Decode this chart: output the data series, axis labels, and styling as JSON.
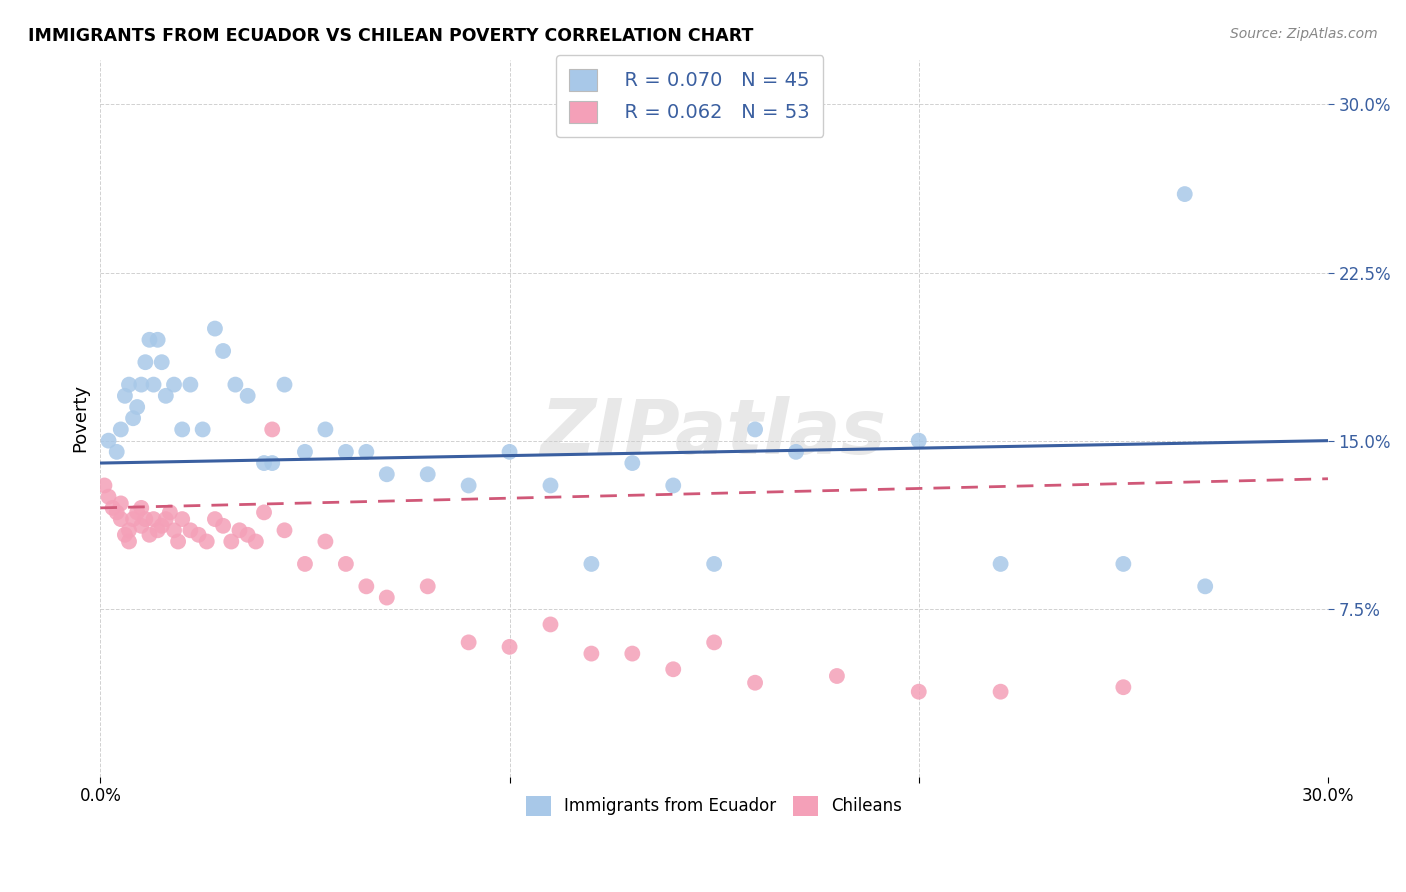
{
  "title": "IMMIGRANTS FROM ECUADOR VS CHILEAN POVERTY CORRELATION CHART",
  "source": "Source: ZipAtlas.com",
  "ylabel": "Poverty",
  "ytick_labels": [
    "7.5%",
    "15.0%",
    "22.5%",
    "30.0%"
  ],
  "ytick_values": [
    0.075,
    0.15,
    0.225,
    0.3
  ],
  "xlim": [
    0.0,
    0.3
  ],
  "ylim": [
    0.0,
    0.32
  ],
  "watermark": "ZIPatlas",
  "color_blue": "#A8C8E8",
  "color_pink": "#F4A0B8",
  "color_line_blue": "#3A5FA0",
  "color_line_pink": "#D05878",
  "ecuador_x": [
    0.002,
    0.004,
    0.005,
    0.006,
    0.007,
    0.008,
    0.009,
    0.01,
    0.011,
    0.012,
    0.013,
    0.014,
    0.015,
    0.016,
    0.018,
    0.02,
    0.022,
    0.025,
    0.028,
    0.03,
    0.033,
    0.036,
    0.04,
    0.042,
    0.045,
    0.05,
    0.055,
    0.06,
    0.065,
    0.07,
    0.08,
    0.09,
    0.1,
    0.11,
    0.12,
    0.13,
    0.14,
    0.15,
    0.16,
    0.17,
    0.2,
    0.22,
    0.25,
    0.265,
    0.27
  ],
  "ecuador_y": [
    0.15,
    0.145,
    0.155,
    0.17,
    0.175,
    0.16,
    0.165,
    0.175,
    0.185,
    0.195,
    0.175,
    0.195,
    0.185,
    0.17,
    0.175,
    0.155,
    0.175,
    0.155,
    0.2,
    0.19,
    0.175,
    0.17,
    0.14,
    0.14,
    0.175,
    0.145,
    0.155,
    0.145,
    0.145,
    0.135,
    0.135,
    0.13,
    0.145,
    0.13,
    0.095,
    0.14,
    0.13,
    0.095,
    0.155,
    0.145,
    0.15,
    0.095,
    0.095,
    0.26,
    0.085
  ],
  "chilean_x": [
    0.001,
    0.002,
    0.003,
    0.004,
    0.005,
    0.005,
    0.006,
    0.007,
    0.007,
    0.008,
    0.009,
    0.01,
    0.01,
    0.011,
    0.012,
    0.013,
    0.014,
    0.015,
    0.016,
    0.017,
    0.018,
    0.019,
    0.02,
    0.022,
    0.024,
    0.026,
    0.028,
    0.03,
    0.032,
    0.034,
    0.036,
    0.038,
    0.04,
    0.042,
    0.045,
    0.05,
    0.055,
    0.06,
    0.065,
    0.07,
    0.08,
    0.09,
    0.1,
    0.11,
    0.12,
    0.13,
    0.14,
    0.15,
    0.16,
    0.18,
    0.2,
    0.22,
    0.25
  ],
  "chilean_y": [
    0.13,
    0.125,
    0.12,
    0.118,
    0.115,
    0.122,
    0.108,
    0.105,
    0.11,
    0.115,
    0.118,
    0.12,
    0.112,
    0.115,
    0.108,
    0.115,
    0.11,
    0.112,
    0.115,
    0.118,
    0.11,
    0.105,
    0.115,
    0.11,
    0.108,
    0.105,
    0.115,
    0.112,
    0.105,
    0.11,
    0.108,
    0.105,
    0.118,
    0.155,
    0.11,
    0.095,
    0.105,
    0.095,
    0.085,
    0.08,
    0.085,
    0.06,
    0.058,
    0.068,
    0.055,
    0.055,
    0.048,
    0.06,
    0.042,
    0.045,
    0.038,
    0.038,
    0.04
  ]
}
